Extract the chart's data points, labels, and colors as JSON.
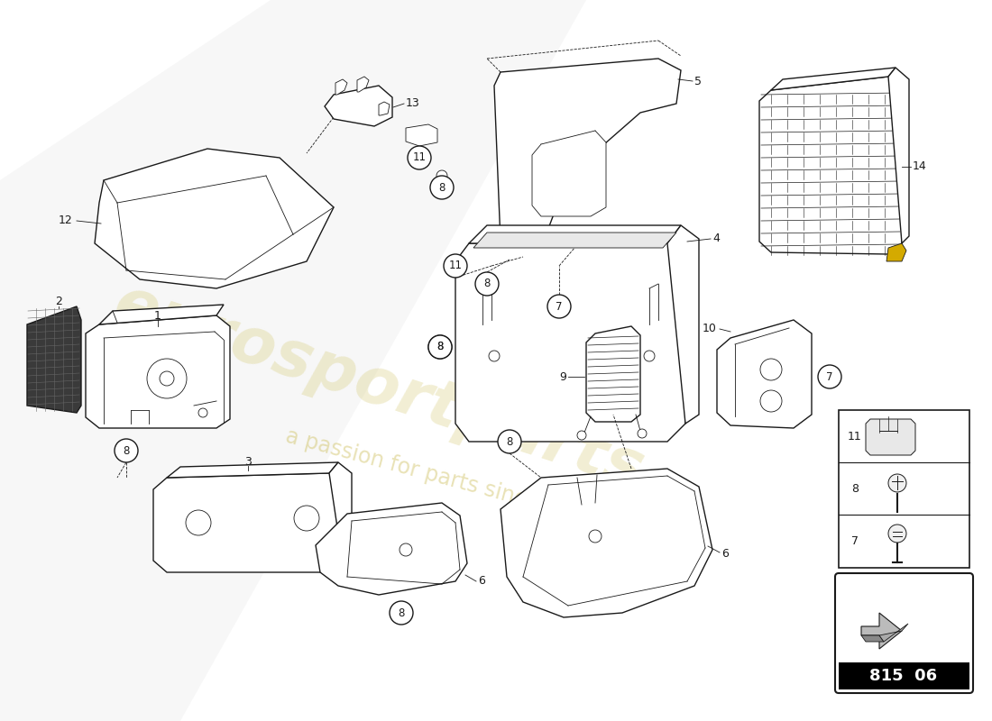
{
  "bg_color": "#ffffff",
  "line_color": "#1a1a1a",
  "watermark_color1": "#d4c870",
  "watermark_color2": "#c8b84a",
  "part_number": "815 06"
}
